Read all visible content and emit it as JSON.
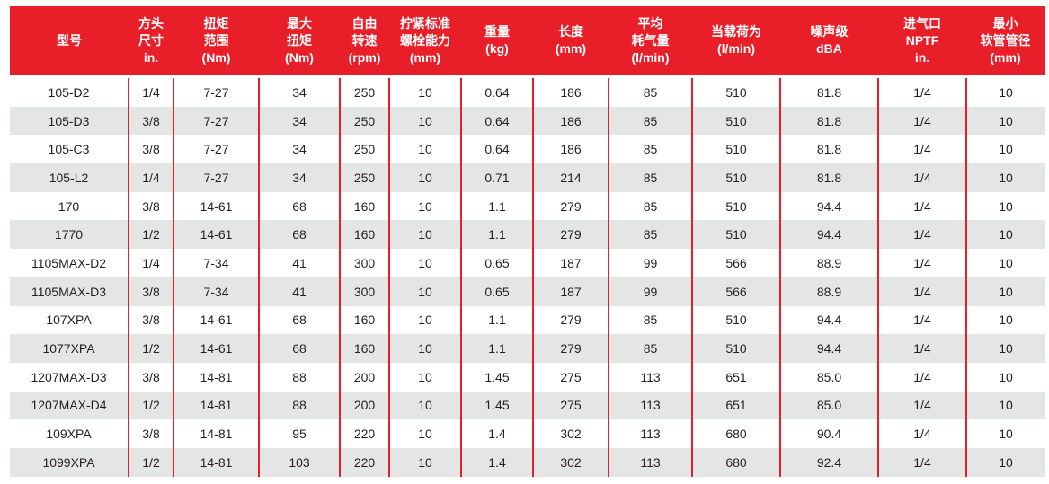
{
  "table": {
    "columns": [
      {
        "id": "model",
        "lines": [
          "型号"
        ]
      },
      {
        "id": "drive-size",
        "lines": [
          "方头",
          "尺寸",
          "in."
        ]
      },
      {
        "id": "torque-range",
        "lines": [
          "扭矩",
          "范围",
          "(Nm)"
        ]
      },
      {
        "id": "max-torque",
        "lines": [
          "最大",
          "扭矩",
          "(Nm)"
        ]
      },
      {
        "id": "free-speed",
        "lines": [
          "自由",
          "转速",
          "(rpm)"
        ]
      },
      {
        "id": "bolt-capacity",
        "lines": [
          "拧紧标准",
          "螺栓能力",
          "(mm)"
        ]
      },
      {
        "id": "weight",
        "lines": [
          "重量",
          "(kg)"
        ]
      },
      {
        "id": "length",
        "lines": [
          "长度",
          "(mm)"
        ]
      },
      {
        "id": "avg-air-consumption",
        "lines": [
          "平均",
          "耗气量",
          "(l/min)"
        ]
      },
      {
        "id": "air-at-load",
        "lines": [
          "当载荷为",
          "(l/min)"
        ]
      },
      {
        "id": "noise-level",
        "lines": [
          "噪声级",
          "dBA"
        ]
      },
      {
        "id": "air-inlet",
        "lines": [
          "进气口",
          "NPTF",
          "in."
        ]
      },
      {
        "id": "min-hose-size",
        "lines": [
          "最小",
          "软管管径",
          "(mm)"
        ]
      }
    ],
    "rows": [
      [
        "105-D2",
        "1/4",
        "7-27",
        "34",
        "250",
        "10",
        "0.64",
        "186",
        "85",
        "510",
        "81.8",
        "1/4",
        "10"
      ],
      [
        "105-D3",
        "3/8",
        "7-27",
        "34",
        "250",
        "10",
        "0.64",
        "186",
        "85",
        "510",
        "81.8",
        "1/4",
        "10"
      ],
      [
        "105-C3",
        "3/8",
        "7-27",
        "34",
        "250",
        "10",
        "0.64",
        "186",
        "85",
        "510",
        "81.8",
        "1/4",
        "10"
      ],
      [
        "105-L2",
        "1/4",
        "7-27",
        "34",
        "250",
        "10",
        "0.71",
        "214",
        "85",
        "510",
        "81.8",
        "1/4",
        "10"
      ],
      [
        "170",
        "3/8",
        "14-61",
        "68",
        "160",
        "10",
        "1.1",
        "279",
        "85",
        "510",
        "94.4",
        "1/4",
        "10"
      ],
      [
        "1770",
        "1/2",
        "14-61",
        "68",
        "160",
        "10",
        "1.1",
        "279",
        "85",
        "510",
        "94.4",
        "1/4",
        "10"
      ],
      [
        "1105MAX-D2",
        "1/4",
        "7-34",
        "41",
        "300",
        "10",
        "0.65",
        "187",
        "99",
        "566",
        "88.9",
        "1/4",
        "10"
      ],
      [
        "1105MAX-D3",
        "3/8",
        "7-34",
        "41",
        "300",
        "10",
        "0.65",
        "187",
        "99",
        "566",
        "88.9",
        "1/4",
        "10"
      ],
      [
        "107XPA",
        "3/8",
        "14-61",
        "68",
        "160",
        "10",
        "1.1",
        "279",
        "85",
        "510",
        "94.4",
        "1/4",
        "10"
      ],
      [
        "1077XPA",
        "1/2",
        "14-61",
        "68",
        "160",
        "10",
        "1.1",
        "279",
        "85",
        "510",
        "94.4",
        "1/4",
        "10"
      ],
      [
        "1207MAX-D3",
        "3/8",
        "14-81",
        "88",
        "200",
        "10",
        "1.45",
        "275",
        "113",
        "651",
        "85.0",
        "1/4",
        "10"
      ],
      [
        "1207MAX-D4",
        "1/2",
        "14-81",
        "88",
        "200",
        "10",
        "1.45",
        "275",
        "113",
        "651",
        "85.0",
        "1/4",
        "10"
      ],
      [
        "109XPA",
        "3/8",
        "14-81",
        "95",
        "220",
        "10",
        "1.4",
        "302",
        "113",
        "680",
        "90.4",
        "1/4",
        "10"
      ],
      [
        "1099XPA",
        "1/2",
        "14-81",
        "103",
        "220",
        "10",
        "1.4",
        "302",
        "113",
        "680",
        "92.4",
        "1/4",
        "10"
      ]
    ],
    "colors": {
      "header_bg": "#e81f28",
      "header_text": "#ffffff",
      "row_alt_bg": "#e4e5e5",
      "row_bg": "#ffffff",
      "divider": "#e81f28",
      "body_text": "#231f20"
    }
  }
}
